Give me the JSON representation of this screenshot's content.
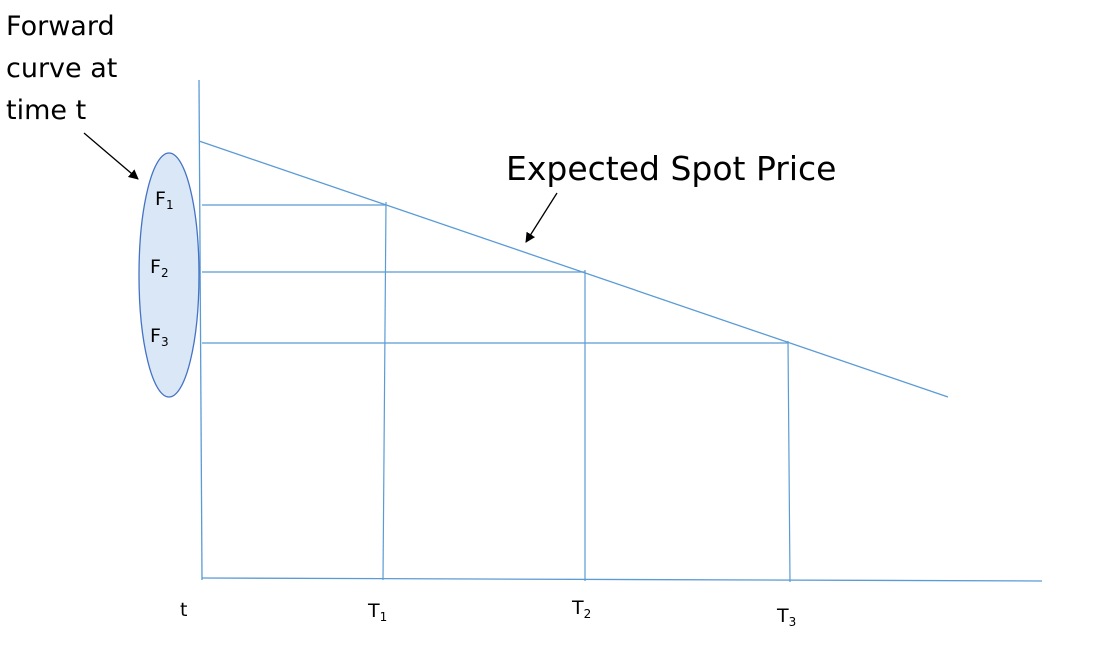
{
  "annotation": {
    "lines": [
      "Forward",
      "curve at",
      "time t"
    ]
  },
  "curve_label": "Expected Spot Price",
  "forward_prices": [
    {
      "letter": "F",
      "index": "1"
    },
    {
      "letter": "F",
      "index": "2"
    },
    {
      "letter": "F",
      "index": "3"
    }
  ],
  "time_axis": {
    "origin": "t",
    "ticks": [
      {
        "letter": "T",
        "index": "1"
      },
      {
        "letter": "T",
        "index": "2"
      },
      {
        "letter": "T",
        "index": "3"
      }
    ]
  },
  "colors": {
    "line": "#5b9bd5",
    "ellipse_fill": "#dae7f6",
    "ellipse_stroke": "#4472c4",
    "arrow": "#000000"
  }
}
